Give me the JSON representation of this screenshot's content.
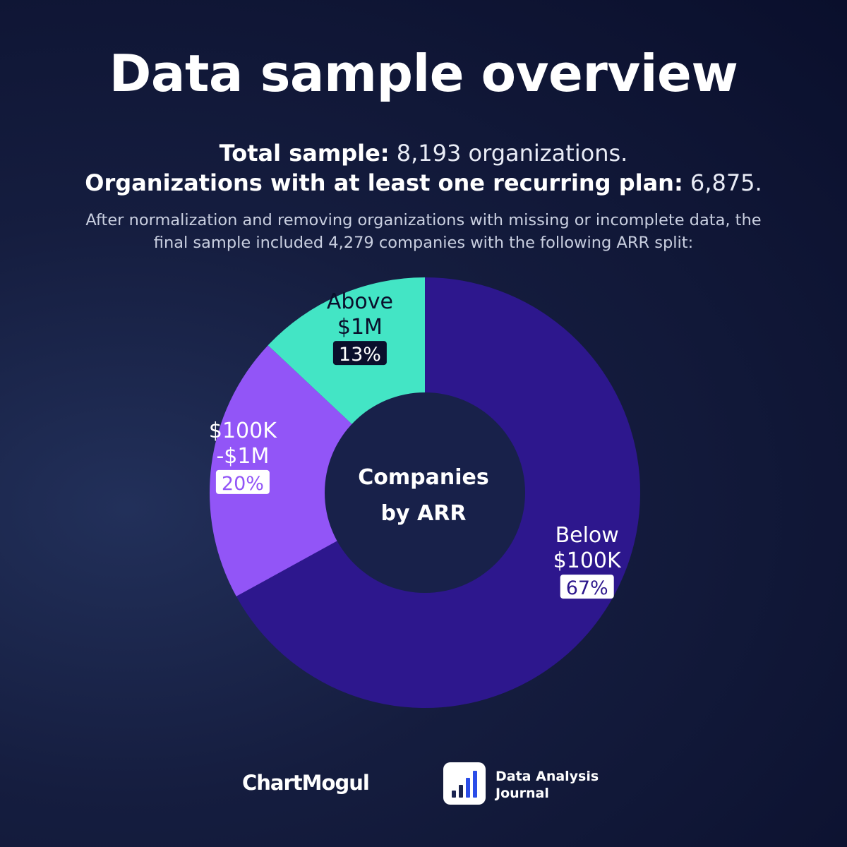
{
  "title": "Data sample overview",
  "stats": {
    "total_label": "Total sample:",
    "total_value": "8,193 organizations.",
    "recurring_label": "Organizations with at least one recurring plan:",
    "recurring_value": "6,875."
  },
  "description": "After normalization and removing organizations with missing or incomplete data, the final sample included 4,279 companies with the following ARR split:",
  "chart_data": {
    "type": "pie",
    "title": "Companies by ARR",
    "title_lines": [
      "Companies",
      "by ARR"
    ],
    "segments": [
      {
        "name": "Below $100K",
        "label_lines": [
          "Below",
          "$100K"
        ],
        "value": 67,
        "pct_label": "67%",
        "color": "#2d178d",
        "label_color": "#ffffff",
        "badge_bg": "#ffffff",
        "badge_text": "#2d178d"
      },
      {
        "name": "$100K-$1M",
        "label_lines": [
          "$100K",
          "-$1M"
        ],
        "value": 20,
        "pct_label": "20%",
        "color": "#9255f7",
        "label_color": "#ffffff",
        "badge_bg": "#ffffff",
        "badge_text": "#9255f7"
      },
      {
        "name": "Above $1M",
        "label_lines": [
          "Above",
          "$1M"
        ],
        "value": 13,
        "pct_label": "13%",
        "color": "#43e5c5",
        "label_color": "#0a0f2c",
        "badge_bg": "#0a0f2c",
        "badge_text": "#ffffff"
      }
    ]
  },
  "footer": {
    "logo_chartmogul": "ChartMogul",
    "dj_line1": "Data Analysis",
    "dj_line2": "Journal"
  },
  "colors": {
    "background": "#0f1535",
    "center_hole": "#18214a",
    "icon_blue": "#2b4de8"
  }
}
